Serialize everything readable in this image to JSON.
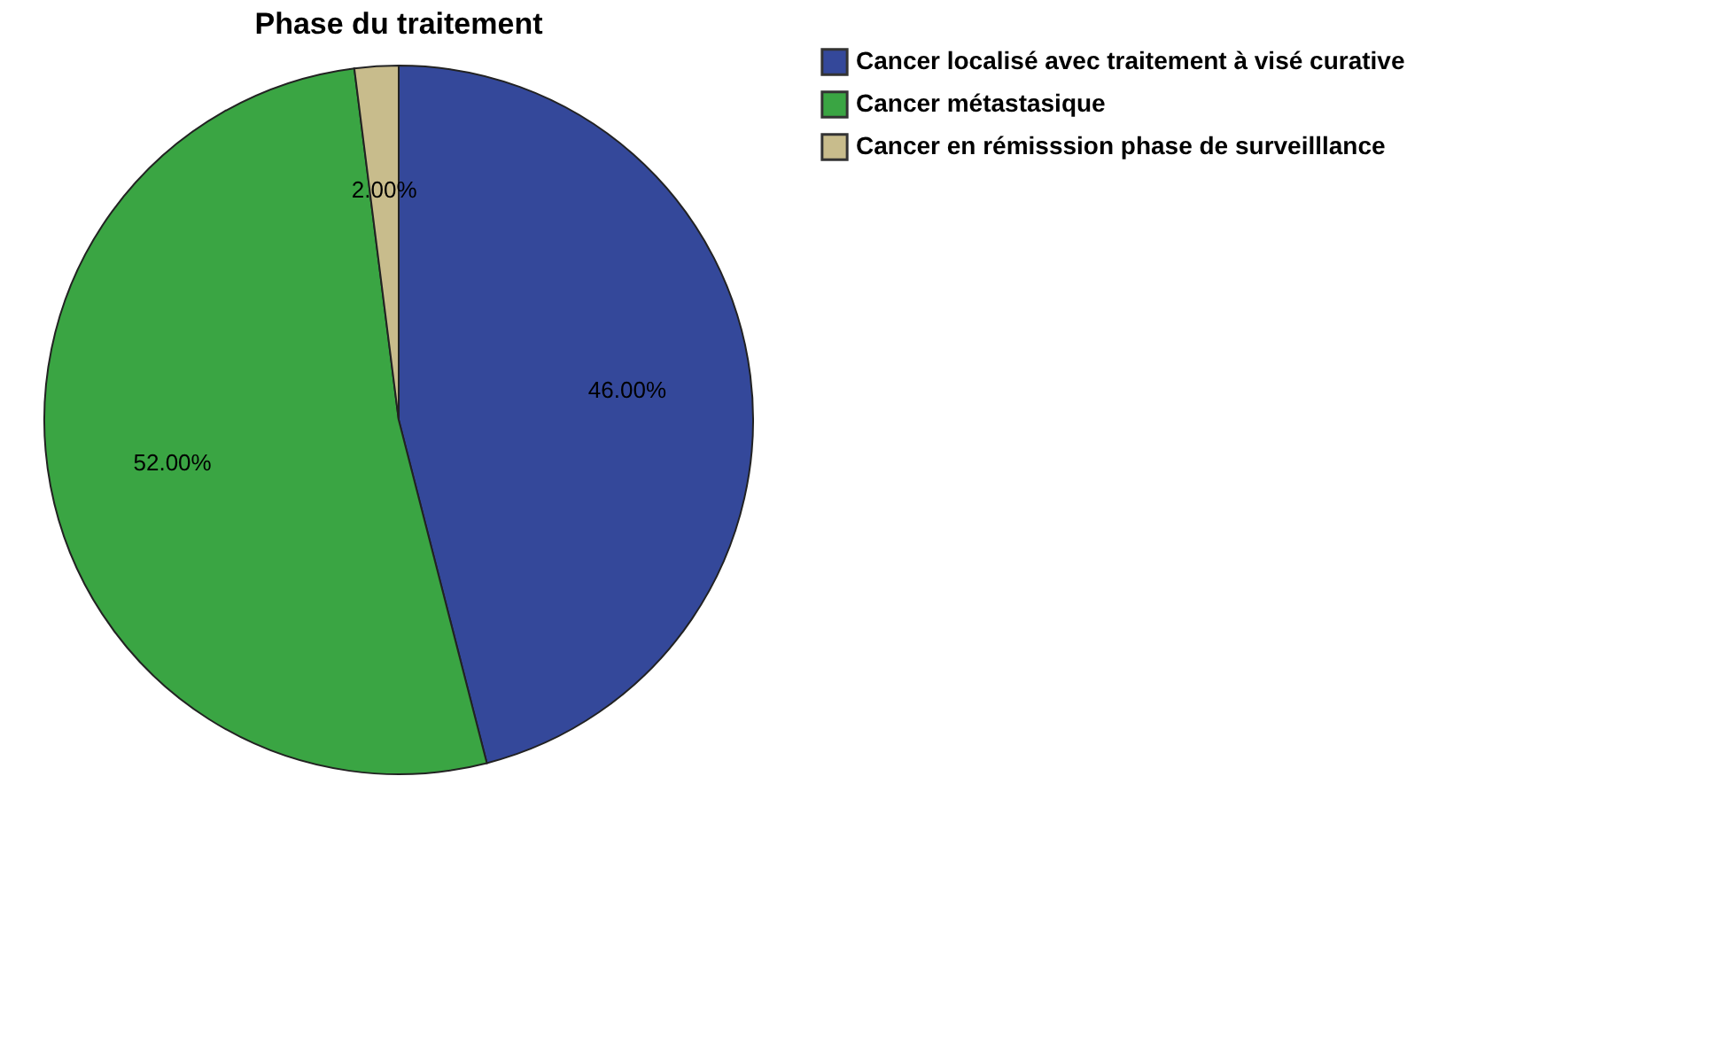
{
  "chart_data": {
    "type": "pie",
    "title": "Phase du traitement",
    "categories": [
      "Cancer localisé avec traitement à visé curative",
      "Cancer métastasique",
      "Cancer en rémisssion phase de surveilllance"
    ],
    "values": [
      46,
      52,
      2
    ],
    "colors": [
      "#34489a",
      "#3aa543",
      "#c8bc8c"
    ],
    "value_labels": [
      "46.00%",
      "52.00%",
      "2.00%"
    ],
    "legend": "top right"
  }
}
